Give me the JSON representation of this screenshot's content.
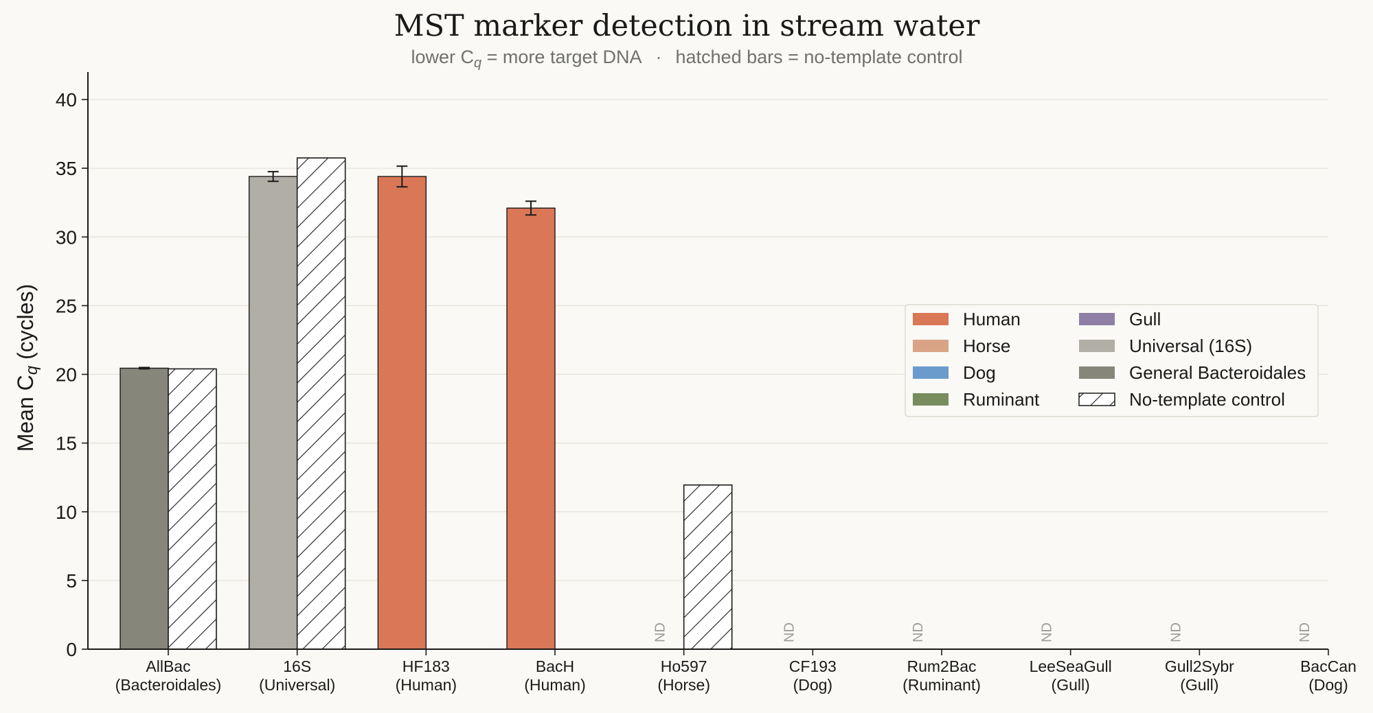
{
  "chart_data": {
    "type": "bar",
    "title": "MST marker detection in stream water",
    "subtitle": {
      "part1": "lower C",
      "sub": "q",
      "part2": " = more target DNA",
      "sep": "·",
      "part3": "hatched bars = no-template control"
    },
    "ylabel": {
      "pre": "Mean C",
      "sub": "q",
      "post": " (cycles)"
    },
    "ylim": [
      0,
      42
    ],
    "yticks": [
      0,
      5,
      10,
      15,
      20,
      25,
      30,
      35,
      40
    ],
    "grid": true,
    "nd_label": "ND",
    "categories": [
      {
        "marker": "AllBac",
        "group": "(Bacteroidales)",
        "host": "General Bacteroidales",
        "sample": 20.45,
        "sample_err": 0.05,
        "ntc": 20.4
      },
      {
        "marker": "16S",
        "group": "(Universal)",
        "host": "Universal (16S)",
        "sample": 34.4,
        "sample_err": 0.35,
        "ntc": 35.75
      },
      {
        "marker": "HF183",
        "group": "(Human)",
        "host": "Human",
        "sample": 34.4,
        "sample_err": 0.75,
        "ntc": null
      },
      {
        "marker": "BacH",
        "group": "(Human)",
        "host": "Human",
        "sample": 32.1,
        "sample_err": 0.5,
        "ntc": null
      },
      {
        "marker": "Ho597",
        "group": "(Horse)",
        "host": "Horse",
        "sample": null,
        "sample_err": null,
        "ntc": 11.95
      },
      {
        "marker": "CF193",
        "group": "(Dog)",
        "host": "Dog",
        "sample": null,
        "sample_err": null,
        "ntc": null
      },
      {
        "marker": "Rum2Bac",
        "group": "(Ruminant)",
        "host": "Ruminant",
        "sample": null,
        "sample_err": null,
        "ntc": null
      },
      {
        "marker": "LeeSeaGull",
        "group": "(Gull)",
        "host": "Gull",
        "sample": null,
        "sample_err": null,
        "ntc": null
      },
      {
        "marker": "Gull2Sybr",
        "group": "(Gull)",
        "host": "Gull",
        "sample": null,
        "sample_err": null,
        "ntc": null
      },
      {
        "marker": "BacCan",
        "group": "(Dog)",
        "host": "Dog",
        "sample": null,
        "sample_err": null,
        "ntc": null
      }
    ],
    "legend": {
      "placement": "center-right",
      "entries": [
        {
          "label": "Human",
          "color": "#d97757"
        },
        {
          "label": "Horse",
          "color": "#d9a485"
        },
        {
          "label": "Dog",
          "color": "#6a9bcc"
        },
        {
          "label": "Ruminant",
          "color": "#788c5d"
        },
        {
          "label": "Gull",
          "color": "#8f7fa6"
        },
        {
          "label": "Universal (16S)",
          "color": "#b0aea5"
        },
        {
          "label": "General Bacteroidales",
          "color": "#87867a"
        },
        {
          "label": "No-template control",
          "color": "hatch"
        }
      ]
    }
  }
}
